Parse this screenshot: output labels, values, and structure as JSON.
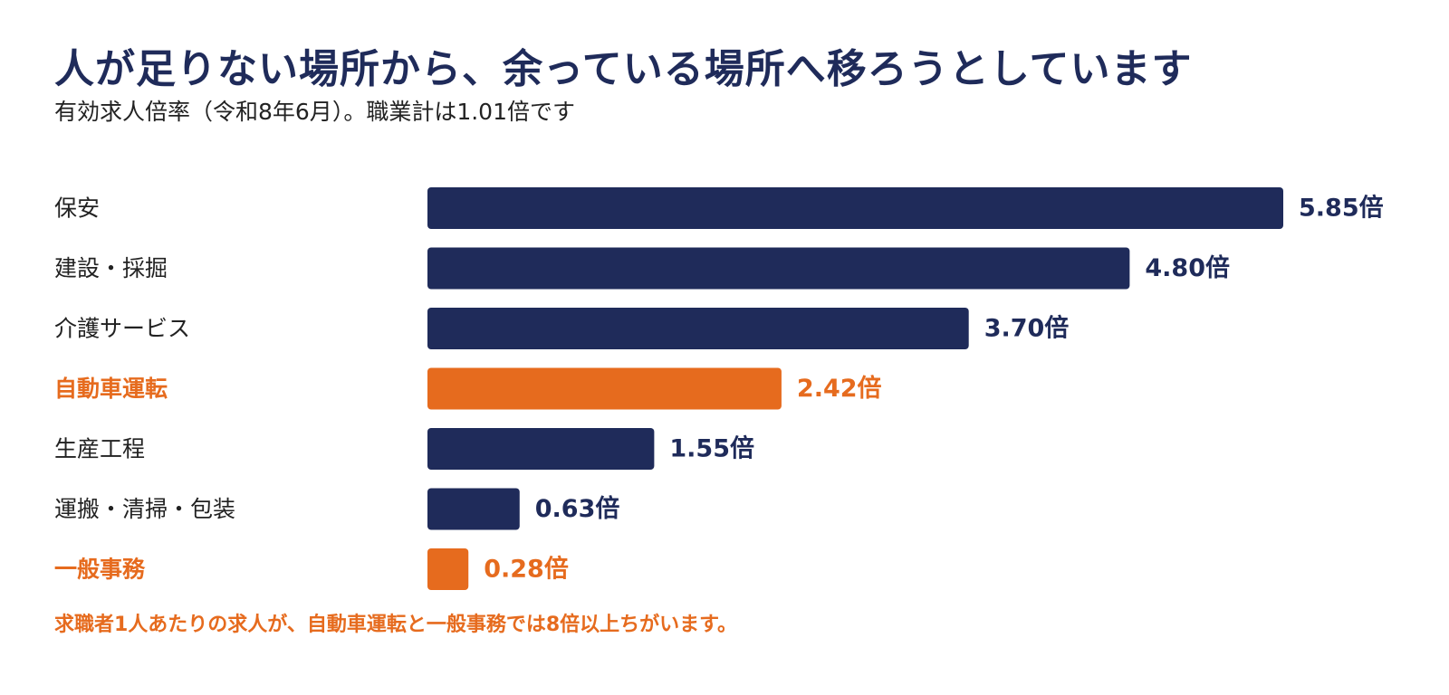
{
  "title": "人が足りない場所から、余っている場所へ移ろうとしています",
  "subtitle": "有効求人倍率（令和8年6月）。職業計は1.01倍です",
  "footnote": "求職者1人あたりの求人が、自動車運転と一般事務では8倍以上ちがいます。",
  "colors": {
    "navy": "#1f2b5a",
    "orange": "#e66b1e",
    "label_default": "#222222"
  },
  "chart_data": {
    "type": "bar",
    "orientation": "horizontal",
    "categories": [
      "保安",
      "建設・採掘",
      "介護サービス",
      "自動車運転",
      "生産工程",
      "運搬・清掃・包装",
      "一般事務"
    ],
    "values": [
      5.85,
      4.8,
      3.7,
      2.42,
      1.55,
      0.63,
      0.28
    ],
    "value_labels": [
      "5.85倍",
      "4.80倍",
      "3.70倍",
      "2.42倍",
      "1.55倍",
      "0.63倍",
      "0.28倍"
    ],
    "highlighted": [
      false,
      false,
      false,
      true,
      false,
      false,
      true
    ],
    "grid": false
  }
}
